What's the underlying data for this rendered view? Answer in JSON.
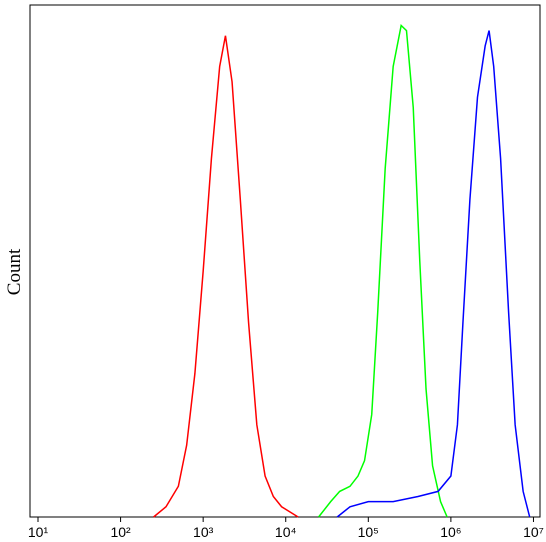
{
  "chart_data": {
    "type": "line",
    "ylabel": "Count",
    "xscale": "log",
    "xlim": [
      8,
      12000000
    ],
    "ylim": [
      0,
      100
    ],
    "xticks": [
      {
        "value": 10,
        "label": "10¹"
      },
      {
        "value": 100,
        "label": "10²"
      },
      {
        "value": 1000,
        "label": "10³"
      },
      {
        "value": 10000,
        "label": "10⁴"
      },
      {
        "value": 100000,
        "label": "10⁵"
      },
      {
        "value": 1000000,
        "label": "10⁶"
      },
      {
        "value": 10000000,
        "label": "10⁷"
      }
    ],
    "series": [
      {
        "color": "#ff0000",
        "x": [
          251,
          355,
          501,
          631,
          794,
          1000,
          1259,
          1585,
          1862,
          2239,
          2818,
          3548,
          4467,
          5623,
          7079,
          8913,
          11220,
          14125
        ],
        "values": [
          0,
          2,
          6,
          14,
          28,
          48,
          70,
          88,
          94,
          85,
          62,
          38,
          18,
          8,
          4,
          2,
          1,
          0
        ]
      },
      {
        "color": "#00ff00",
        "x": [
          25000,
          35000,
          45000,
          60000,
          75000,
          90000,
          110000,
          130000,
          160000,
          200000,
          250000,
          290000,
          350000,
          420000,
          500000,
          600000,
          750000,
          900000
        ],
        "values": [
          0,
          3,
          5,
          6,
          8,
          11,
          20,
          40,
          68,
          88,
          96,
          95,
          80,
          50,
          25,
          10,
          3,
          0
        ]
      },
      {
        "color": "#0000ff",
        "x": [
          42000,
          60000,
          100000,
          200000,
          400000,
          700000,
          1000000,
          1200000,
          1400000,
          1700000,
          2100000,
          2600000,
          2900000,
          3300000,
          4000000,
          5000000,
          6000000,
          7500000,
          9000000
        ],
        "values": [
          0,
          2,
          3,
          3,
          4,
          5,
          8,
          18,
          38,
          62,
          82,
          92,
          95,
          88,
          70,
          40,
          18,
          5,
          0
        ]
      }
    ]
  }
}
